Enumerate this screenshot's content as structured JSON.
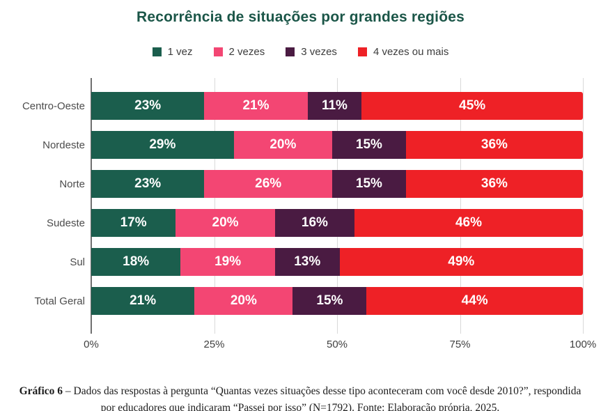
{
  "title": "Recorrência de situações por grandes regiões",
  "legend": [
    {
      "label": "1 vez",
      "color": "#1B5E4D"
    },
    {
      "label": "2 vezes",
      "color": "#F34673"
    },
    {
      "label": "3 vezes",
      "color": "#4A1B42"
    },
    {
      "label": "4 vezes ou mais",
      "color": "#EE2126"
    }
  ],
  "chart_data": {
    "type": "bar",
    "orientation": "horizontal",
    "stacked": true,
    "title": "Recorrência de situações por grandes regiões",
    "categories": [
      "Centro-Oeste",
      "Nordeste",
      "Norte",
      "Sudeste",
      "Sul",
      "Total Geral"
    ],
    "series": [
      {
        "name": "1 vez",
        "color": "#1B5E4D",
        "values": [
          23,
          29,
          23,
          17,
          18,
          21
        ]
      },
      {
        "name": "2 vezes",
        "color": "#F34673",
        "values": [
          21,
          20,
          26,
          20,
          19,
          20
        ]
      },
      {
        "name": "3 vezes",
        "color": "#4A1B42",
        "values": [
          11,
          15,
          15,
          16,
          13,
          15
        ]
      },
      {
        "name": "4 vezes ou mais",
        "color": "#EE2126",
        "values": [
          45,
          36,
          36,
          46,
          49,
          44
        ]
      }
    ],
    "value_suffix": "%",
    "x_ticks": [
      "0%",
      "25%",
      "50%",
      "75%",
      "100%"
    ],
    "xlim": [
      0,
      100
    ],
    "grid": true,
    "legend_position": "top"
  },
  "caption": {
    "label": "Gráfico 6",
    "separator": "–",
    "text": "Dados das respostas à pergunta “Quantas vezes situações desse tipo aconteceram com você desde 2010?”, respondida por educadores que indicaram “Passei por isso” (N=1792). Fonte: Elaboração própria, 2025."
  },
  "colors": {
    "title": "#1B5648",
    "axis_line": "#6F6F6F",
    "gridline": "#D9D9D9",
    "category_label": "#4C4C4C",
    "tick_label": "#3F3F3F",
    "bar_value_text": "#FFFFFF",
    "background": "#FFFFFF"
  }
}
